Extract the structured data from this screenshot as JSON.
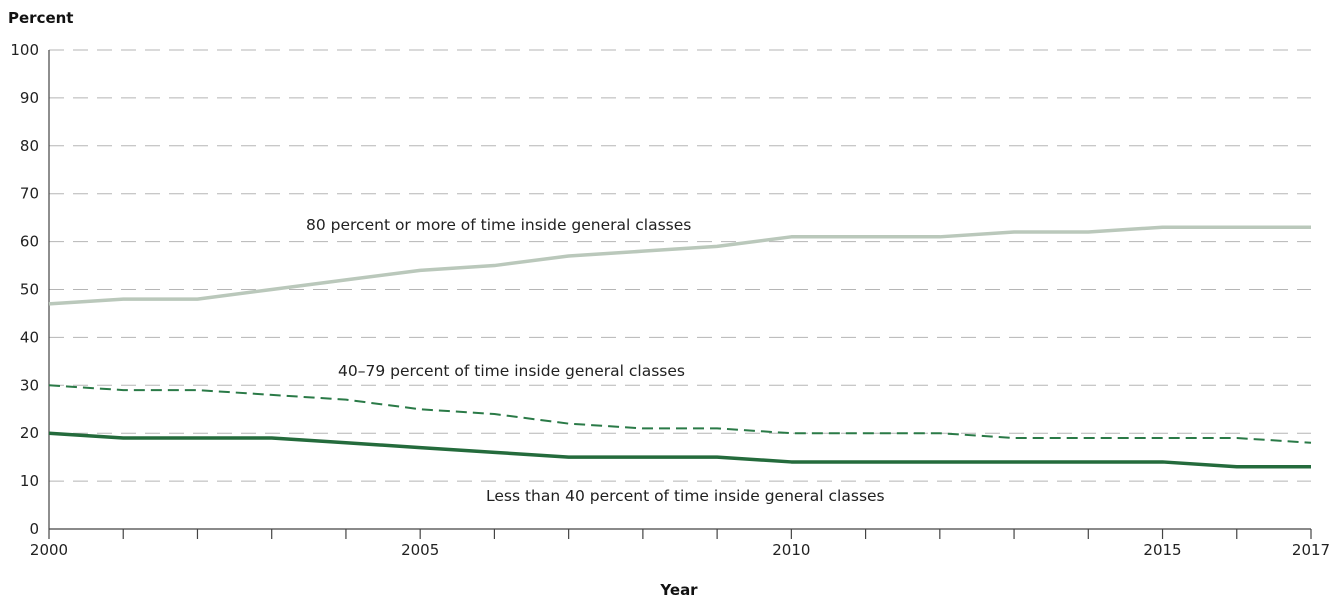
{
  "chart_data": {
    "type": "line",
    "ylabel": "Percent",
    "xlabel": "Year",
    "ylim": [
      0,
      100
    ],
    "yticks": [
      "0",
      "10",
      "20",
      "30",
      "40",
      "50",
      "60",
      "70",
      "80",
      "90",
      "100"
    ],
    "xlim": [
      2000,
      2017
    ],
    "xtick_labels": [
      "2000",
      "2005",
      "2010",
      "2015",
      "2017"
    ],
    "grid": true,
    "x": [
      2000,
      2001,
      2002,
      2003,
      2004,
      2005,
      2006,
      2007,
      2008,
      2009,
      2010,
      2011,
      2012,
      2013,
      2014,
      2015,
      2016,
      2017
    ],
    "series": [
      {
        "name": "80 percent or more of time inside general classes",
        "color": "#bac8bb",
        "style": "solid",
        "values": [
          47,
          48,
          48,
          50,
          52,
          54,
          55,
          57,
          58,
          59,
          61,
          61,
          61,
          62,
          62,
          63,
          63,
          63
        ]
      },
      {
        "name": "40–79 percent of time inside general classes",
        "color": "#2a7a47",
        "style": "dashed",
        "values": [
          30,
          29,
          29,
          28,
          27,
          25,
          24,
          22,
          21,
          21,
          20,
          20,
          20,
          19,
          19,
          19,
          19,
          18
        ]
      },
      {
        "name": "Less than 40 percent of time inside general classes",
        "color": "#246b3c",
        "style": "solid-thick",
        "values": [
          20,
          19,
          19,
          19,
          18,
          17,
          16,
          15,
          15,
          15,
          14,
          14,
          14,
          14,
          14,
          14,
          13,
          13
        ]
      }
    ]
  }
}
